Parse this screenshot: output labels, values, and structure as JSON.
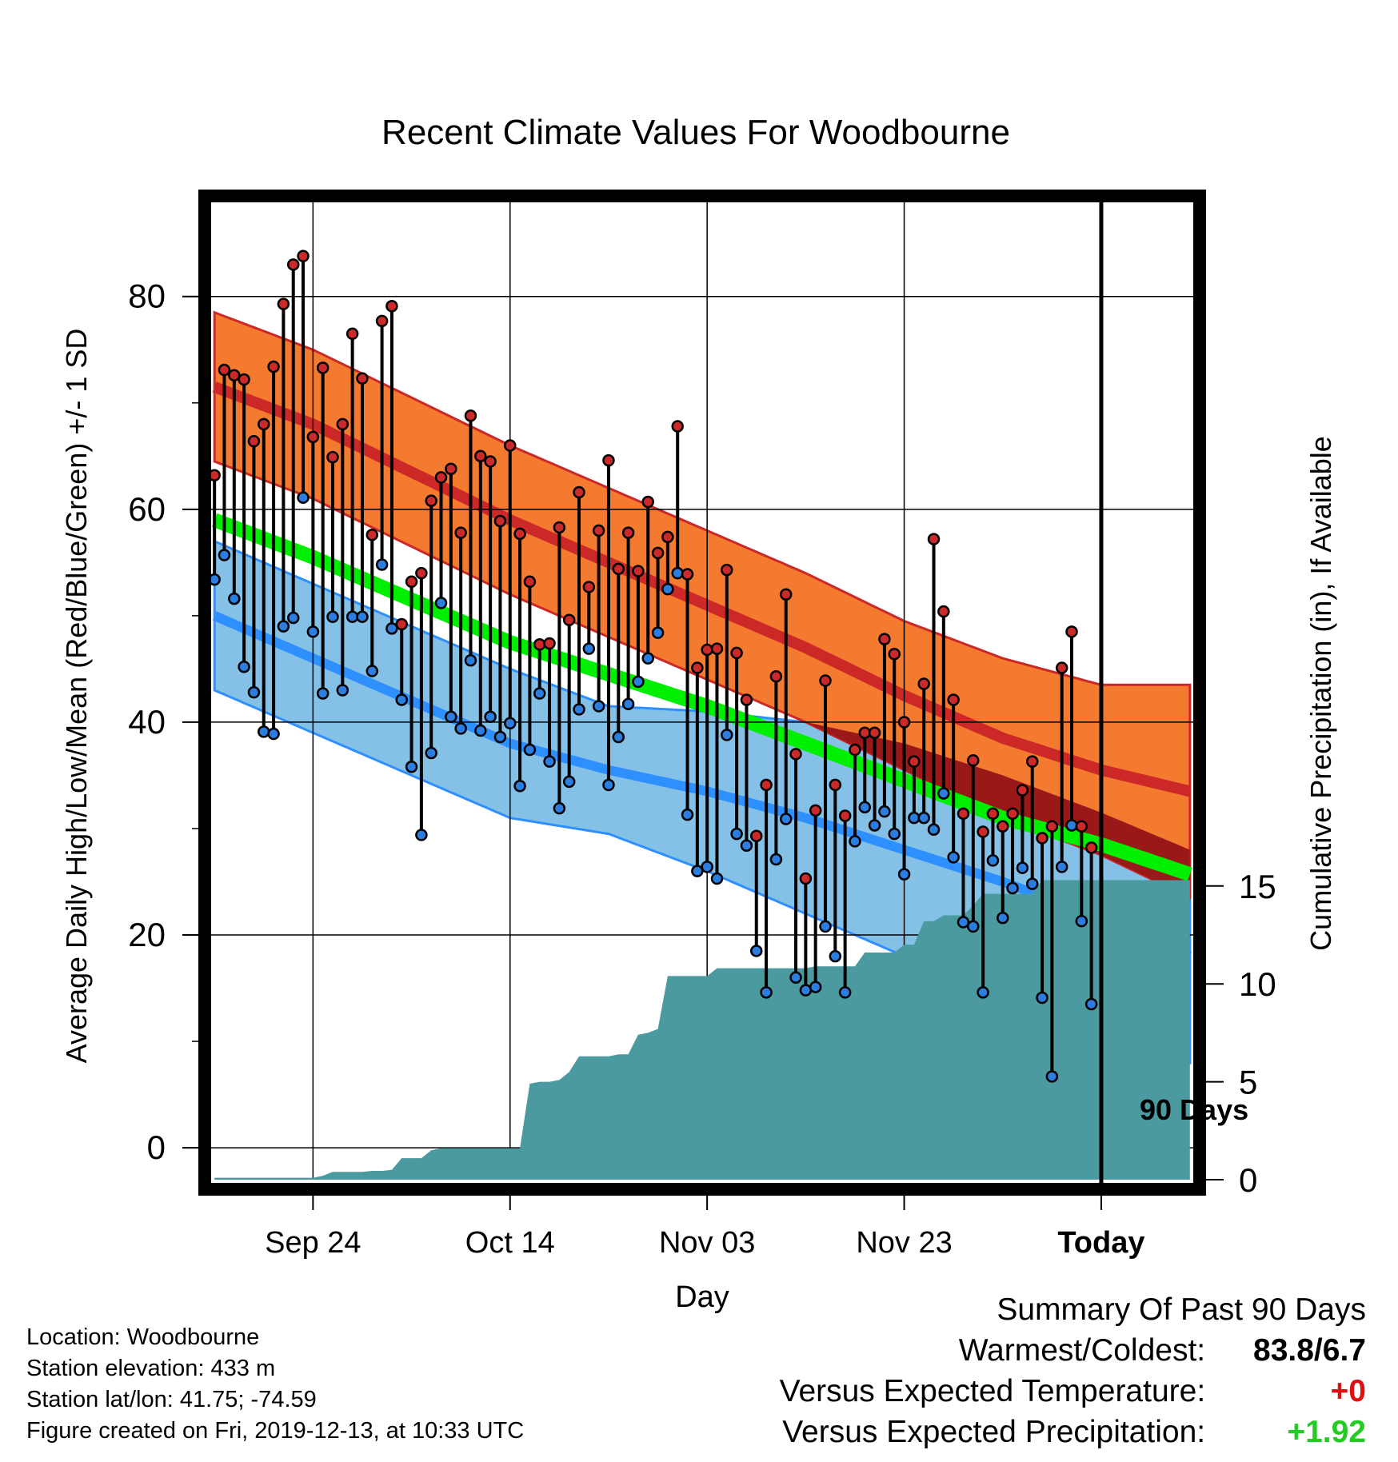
{
  "chart_data": {
    "type": "line",
    "title": "Recent Climate Values For Woodbourne",
    "xlabel": "Day",
    "ylabel": "Average Daily High/Low/Mean (Red/Blue/Green) +/- 1 SD",
    "y2label": "Cumulative Precipitation (in), If Available",
    "x_ticks": [
      "Sep 24",
      "Oct 14",
      "Nov 03",
      "Nov 23",
      "Today"
    ],
    "x_tick_days": [
      10,
      30,
      50,
      70,
      90
    ],
    "xlim": [
      -0.5,
      99.5
    ],
    "ylim": [
      -3,
      89
    ],
    "y_ticks": [
      0,
      20,
      40,
      60,
      80
    ],
    "y2lim": [
      0,
      50
    ],
    "y2_ticks": [
      0,
      5,
      10,
      15
    ],
    "grid": true,
    "marker_label": "90 Days",
    "colors": {
      "high_band": "#f47a30",
      "high_mean": "#cc2828",
      "low_band": "#85c1e6",
      "low_mean": "#2e90ff",
      "mean_band": "#00ee00",
      "overlap": "#991818",
      "precip": "#4a9aa0",
      "high_dot": "#cc2a2a",
      "low_dot": "#2b7de0"
    },
    "normals": {
      "day": [
        0,
        10,
        20,
        30,
        40,
        50,
        60,
        70,
        80,
        90,
        99
      ],
      "high_mean": [
        71.5,
        68.0,
        63.5,
        59.0,
        55.0,
        51.0,
        47.0,
        42.5,
        38.5,
        35.5,
        33.5
      ],
      "high_sd": [
        7,
        7,
        7,
        7,
        7,
        7,
        7,
        7,
        7.5,
        8,
        10
      ],
      "low_mean": [
        50.0,
        46.0,
        42.0,
        38.0,
        35.5,
        33.5,
        31.0,
        28.0,
        25.0,
        21.5,
        18.0
      ],
      "low_sd": [
        7,
        7,
        7,
        7,
        6,
        7.5,
        9,
        10,
        10,
        10,
        10
      ],
      "mean": [
        59.0,
        55.5,
        51.5,
        47.5,
        44.5,
        41.5,
        38.0,
        34.5,
        31.0,
        28.5,
        25.7
      ]
    },
    "series": [
      {
        "name": "High",
        "x": [
          0,
          1,
          2,
          3,
          4,
          5,
          6,
          7,
          8,
          9,
          10,
          11,
          12,
          13,
          14,
          15,
          16,
          17,
          18,
          19,
          20,
          21,
          22,
          23,
          24,
          25,
          26,
          27,
          28,
          29,
          30,
          31,
          32,
          33,
          34,
          35,
          36,
          37,
          38,
          39,
          40,
          41,
          42,
          43,
          44,
          45,
          46,
          47,
          48,
          49,
          50,
          51,
          52,
          53,
          54,
          55,
          56,
          57,
          58,
          59,
          60,
          61,
          62,
          63,
          64,
          65,
          66,
          67,
          68,
          69,
          70,
          71,
          72,
          73,
          74,
          75,
          76,
          77,
          78,
          79,
          80,
          81,
          82,
          83,
          84,
          85,
          86,
          87,
          88,
          89
        ],
        "values": [
          63.2,
          73.1,
          72.6,
          72.2,
          66.4,
          68.0,
          73.4,
          79.3,
          83.0,
          83.8,
          66.8,
          73.3,
          64.9,
          68.0,
          76.5,
          72.3,
          57.6,
          77.7,
          79.1,
          49.2,
          53.2,
          54.0,
          60.8,
          63.0,
          63.8,
          57.8,
          68.8,
          65.0,
          64.5,
          58.9,
          66.0,
          57.7,
          53.2,
          47.3,
          47.4,
          58.3,
          49.6,
          61.6,
          52.7,
          58.0,
          64.6,
          54.4,
          57.8,
          54.2,
          60.7,
          55.9,
          57.4,
          67.8,
          53.9,
          45.1,
          46.8,
          46.9,
          54.3,
          46.5,
          42.1,
          29.3,
          34.1,
          44.3,
          52.0,
          37.0,
          25.3,
          31.7,
          43.9,
          34.1,
          31.2,
          37.4,
          39.0,
          39.0,
          47.8,
          46.4,
          40.0,
          36.3,
          43.6,
          57.2,
          50.4,
          42.1,
          31.4,
          36.4,
          29.7,
          31.4,
          30.2,
          31.4,
          33.6,
          36.3,
          29.1,
          30.2,
          45.1,
          48.5,
          30.2,
          28.2
        ]
      },
      {
        "name": "Low",
        "x": [
          0,
          1,
          2,
          3,
          4,
          5,
          6,
          7,
          8,
          9,
          10,
          11,
          12,
          13,
          14,
          15,
          16,
          17,
          18,
          19,
          20,
          21,
          22,
          23,
          24,
          25,
          26,
          27,
          28,
          29,
          30,
          31,
          32,
          33,
          34,
          35,
          36,
          37,
          38,
          39,
          40,
          41,
          42,
          43,
          44,
          45,
          46,
          47,
          48,
          49,
          50,
          51,
          52,
          53,
          54,
          55,
          56,
          57,
          58,
          59,
          60,
          61,
          62,
          63,
          64,
          65,
          66,
          67,
          68,
          69,
          70,
          71,
          72,
          73,
          74,
          75,
          76,
          77,
          78,
          79,
          80,
          81,
          82,
          83,
          84,
          85,
          86,
          87,
          88,
          89
        ],
        "values": [
          53.4,
          55.7,
          51.6,
          45.2,
          42.8,
          39.1,
          38.9,
          49.0,
          49.8,
          61.1,
          48.5,
          42.7,
          49.9,
          43.0,
          49.9,
          49.9,
          44.8,
          54.8,
          48.8,
          42.1,
          35.8,
          29.4,
          37.1,
          51.2,
          40.5,
          39.4,
          45.8,
          39.2,
          40.5,
          38.6,
          39.9,
          34.0,
          37.4,
          42.7,
          36.3,
          31.9,
          34.4,
          41.2,
          46.9,
          41.5,
          34.1,
          38.6,
          41.7,
          43.8,
          46.0,
          48.4,
          52.5,
          54.0,
          31.3,
          26.0,
          26.4,
          25.3,
          38.8,
          29.5,
          28.4,
          18.5,
          14.6,
          27.1,
          30.9,
          16.0,
          14.8,
          15.1,
          20.8,
          18.0,
          14.6,
          28.8,
          32.0,
          30.3,
          31.6,
          29.5,
          25.7,
          31.0,
          31.0,
          29.9,
          33.3,
          27.3,
          21.2,
          20.8,
          14.6,
          27.0,
          21.6,
          24.4,
          26.3,
          24.8,
          14.1,
          6.7,
          26.4,
          30.3,
          21.3,
          13.5
        ]
      },
      {
        "name": "Cumulative Precipitation",
        "x": [
          0,
          10,
          11,
          12,
          13,
          14,
          15,
          16,
          17,
          18,
          19,
          20,
          21,
          22,
          23,
          24,
          25,
          26,
          27,
          28,
          29,
          30,
          31,
          32,
          33,
          34,
          35,
          36,
          37,
          38,
          39,
          40,
          41,
          42,
          43,
          44,
          45,
          46,
          47,
          48,
          49,
          50,
          51,
          52,
          53,
          54,
          55,
          56,
          57,
          58,
          59,
          60,
          61,
          62,
          63,
          64,
          65,
          66,
          67,
          68,
          69,
          70,
          71,
          72,
          73,
          74,
          75,
          76,
          77,
          78,
          79,
          80,
          81,
          82,
          83,
          84,
          85,
          86,
          87,
          88,
          89,
          90,
          99
        ],
        "values": [
          0.1,
          0.1,
          0.2,
          0.4,
          0.4,
          0.4,
          0.4,
          0.45,
          0.45,
          0.5,
          1.1,
          1.1,
          1.1,
          1.5,
          1.6,
          1.6,
          1.6,
          1.6,
          1.6,
          1.6,
          1.6,
          1.6,
          1.6,
          4.9,
          5.0,
          5.0,
          5.1,
          5.5,
          6.3,
          6.3,
          6.3,
          6.3,
          6.4,
          6.4,
          7.4,
          7.5,
          7.7,
          10.4,
          10.4,
          10.4,
          10.4,
          10.4,
          10.8,
          10.8,
          10.8,
          10.8,
          10.8,
          10.8,
          10.8,
          10.8,
          10.8,
          10.8,
          10.9,
          10.9,
          10.9,
          10.9,
          10.9,
          11.6,
          11.6,
          11.6,
          11.6,
          12.0,
          12.0,
          13.2,
          13.2,
          13.5,
          13.5,
          13.5,
          14.0,
          14.6,
          14.6,
          14.6,
          14.6,
          14.6,
          14.6,
          15.3,
          15.3,
          15.3,
          15.3,
          15.3,
          15.3,
          15.3,
          15.3
        ]
      }
    ]
  },
  "info": {
    "location": "Location: Woodbourne",
    "elevation": "Station elevation: 433 m",
    "latlon": "Station lat/lon: 41.75; -74.59",
    "created": "Figure created on Fri, 2019-12-13, at 10:33 UTC"
  },
  "summary": {
    "heading": "Summary Of Past 90 Days",
    "warm_cold_label": "Warmest/Coldest:",
    "warm_cold_value": "83.8/6.7",
    "temp_label": "Versus Expected Temperature:",
    "temp_value": "+0",
    "temp_color": "#dd1111",
    "precip_label": "Versus Expected Precipitation:",
    "precip_value": "+1.92",
    "precip_color": "#22cc22"
  }
}
